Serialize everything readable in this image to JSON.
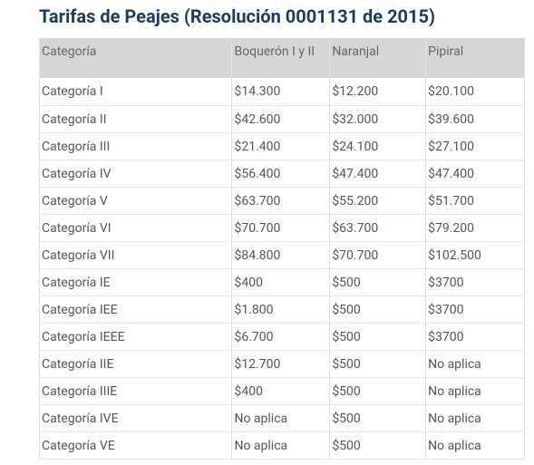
{
  "header": {
    "title": "Tarifas de Peajes (Resolución 0001131 de 2015)"
  },
  "table": {
    "columns": [
      "Categoría",
      "Boquerón I y II",
      "Naranjal",
      "Pipiral"
    ],
    "rows": [
      [
        "Categoría I",
        "$14.300",
        "$12.200",
        "$20.100"
      ],
      [
        "Categoría II",
        "$42.600",
        "$32.000",
        "$39.600"
      ],
      [
        "Categoría III",
        "$21.400",
        "$24.100",
        "$27.100"
      ],
      [
        "Categoría IV",
        "$56.400",
        "$47.400",
        "$47.400"
      ],
      [
        "Categoría V",
        "$63.700",
        "$55.200",
        "$51.700"
      ],
      [
        "Categoría VI",
        "$70.700",
        "$63.700",
        "$79.200"
      ],
      [
        "Categoría VII",
        "$84.800",
        "$70.700",
        "$102.500"
      ],
      [
        "Categoría IE",
        "$400",
        "$500",
        "$3700"
      ],
      [
        "Categoría IEE",
        "$1.800",
        "$500",
        "$3700"
      ],
      [
        "Categoría IEEE",
        "$6.700",
        "$500",
        "$3700"
      ],
      [
        "Categoría IIE",
        "$12.700",
        "$500",
        "No aplica"
      ],
      [
        "Categoría IIIE",
        "$400",
        "$500",
        "No aplica"
      ],
      [
        "Categoría IVE",
        "No aplica",
        "$500",
        "No aplica"
      ],
      [
        "Categoría VE",
        "No aplica",
        "$500",
        "No aplica"
      ]
    ]
  }
}
